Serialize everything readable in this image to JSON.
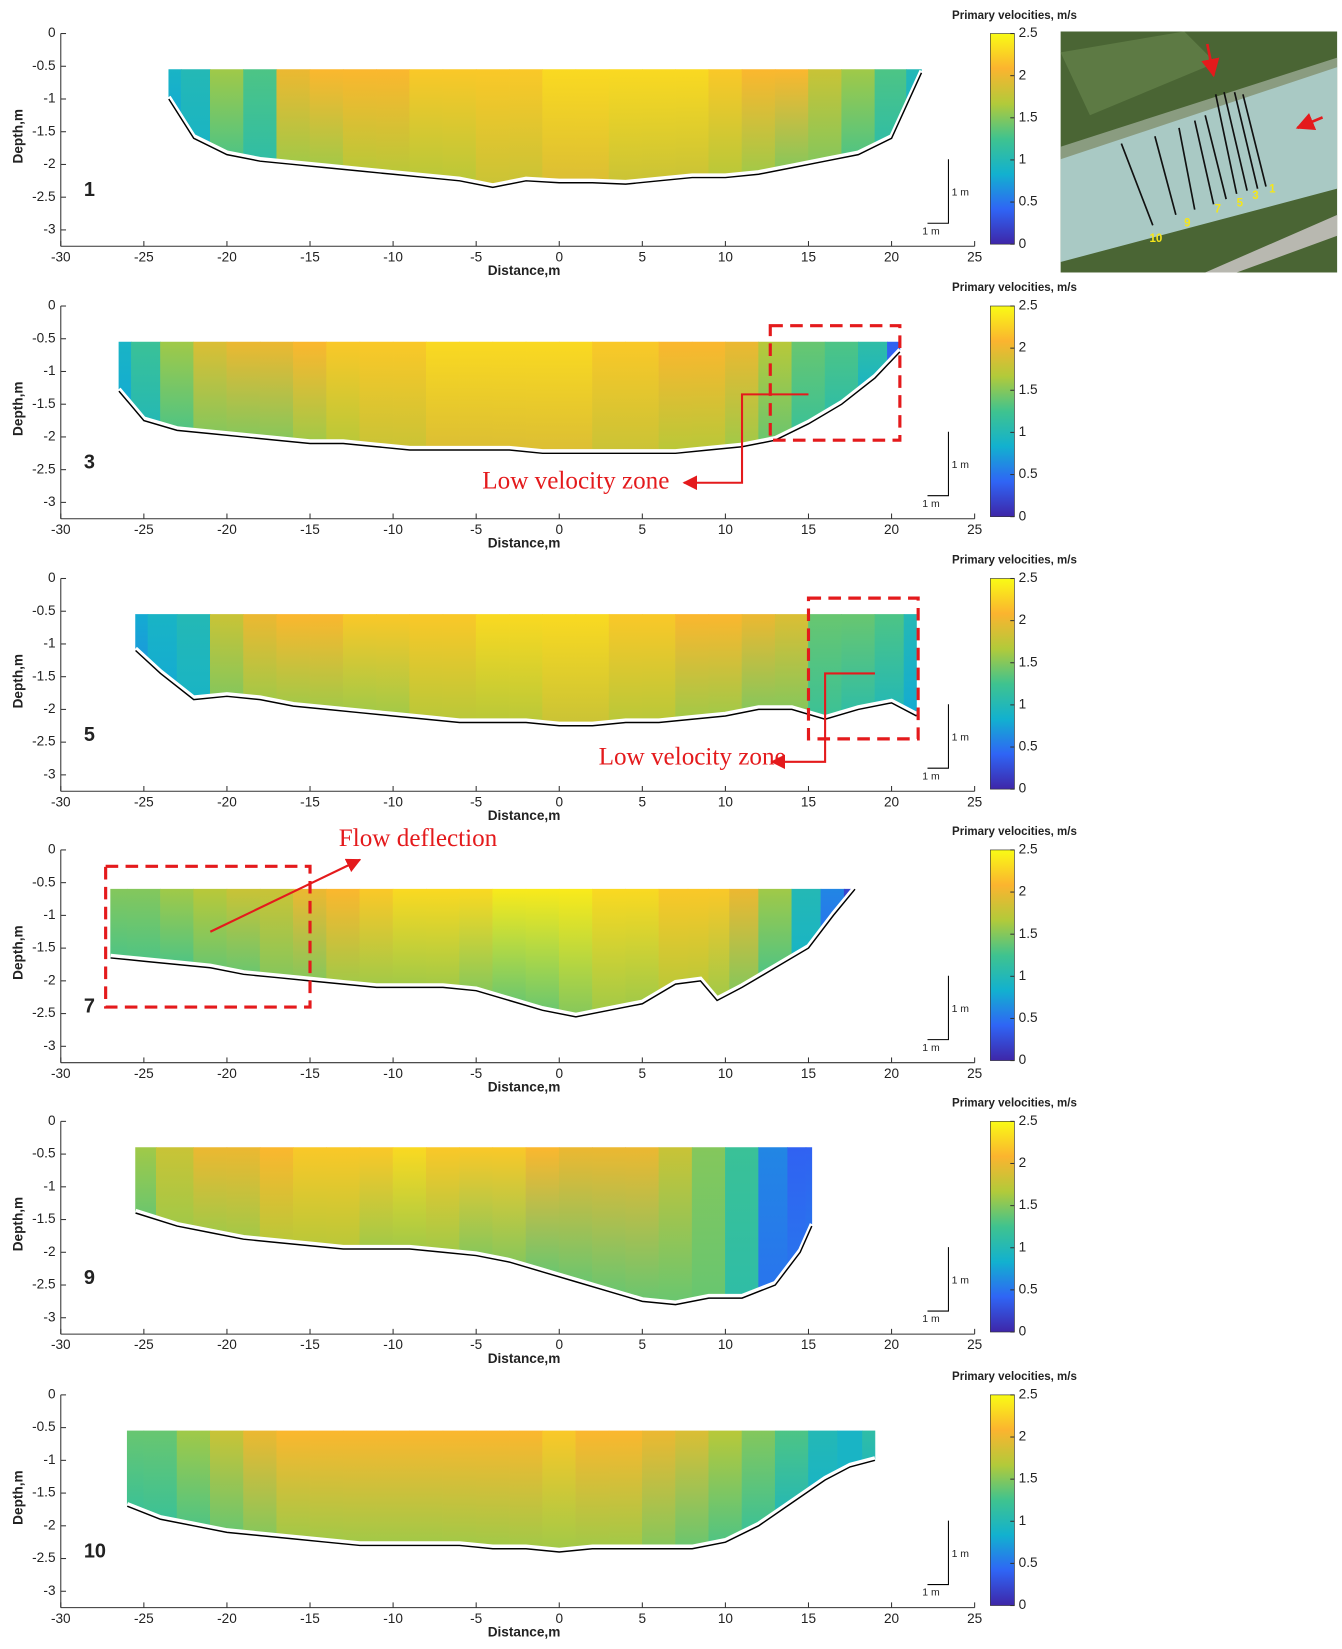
{
  "chart_data": [
    {
      "type": "section",
      "label": "1",
      "xlabel": "Distance,m",
      "ylabel": "Depth,m",
      "xlim": [
        -30,
        25
      ],
      "ylim": [
        -3.25,
        0
      ],
      "xticks": [
        -30,
        -25,
        -20,
        -15,
        -10,
        -5,
        0,
        5,
        10,
        15,
        20,
        25
      ],
      "yticks": [
        0,
        -0.5,
        -1,
        -1.5,
        -2,
        -2.5,
        -3
      ],
      "colorbar_title": "Primary velocities, m/s",
      "clim": [
        0,
        2.5
      ],
      "cticks": [
        0,
        0.5,
        1,
        1.5,
        2,
        2.5
      ],
      "colormap": [
        "#3e26a8",
        "#2f65f5",
        "#12b1cf",
        "#3fc38f",
        "#b2ca3a",
        "#fbb42f",
        "#f9fb15"
      ],
      "scale_labels": [
        "1 m",
        "1 m"
      ],
      "surface": -0.55,
      "x": [
        -23.5,
        -22,
        -20,
        -18,
        -16,
        -14,
        -12,
        -10,
        -8,
        -6,
        -4,
        -2,
        0,
        2,
        4,
        6,
        8,
        10,
        12,
        14,
        16,
        18,
        20,
        21.8
      ],
      "bed": [
        -1.0,
        -1.6,
        -1.85,
        -1.95,
        -2.0,
        -2.05,
        -2.1,
        -2.15,
        -2.2,
        -2.25,
        -2.35,
        -2.25,
        -2.28,
        -2.28,
        -2.3,
        -2.25,
        -2.2,
        -2.2,
        -2.15,
        -2.05,
        -1.95,
        -1.85,
        -1.6,
        -0.6
      ],
      "velocity_top": [
        0.9,
        1.0,
        1.6,
        1.3,
        2.0,
        2.1,
        2.1,
        2.1,
        2.2,
        2.2,
        2.2,
        2.2,
        2.3,
        2.3,
        2.3,
        2.3,
        2.3,
        2.2,
        2.1,
        2.1,
        1.8,
        1.6,
        1.3,
        1.0
      ],
      "velocity_bottom": [
        0.8,
        0.9,
        1.3,
        1.1,
        1.6,
        1.6,
        1.7,
        1.7,
        1.7,
        1.7,
        1.8,
        1.8,
        1.9,
        1.9,
        1.8,
        1.8,
        1.8,
        1.7,
        1.6,
        1.5,
        1.5,
        1.3,
        1.1,
        0.9
      ]
    },
    {
      "type": "section",
      "label": "3",
      "xlabel": "Distance,m",
      "ylabel": "Depth,m",
      "xlim": [
        -30,
        25
      ],
      "ylim": [
        -3.25,
        0
      ],
      "xticks": [
        -30,
        -25,
        -20,
        -15,
        -10,
        -5,
        0,
        5,
        10,
        15,
        20,
        25
      ],
      "yticks": [
        0,
        -0.5,
        -1,
        -1.5,
        -2,
        -2.5,
        -3
      ],
      "colorbar_title": "Primary velocities, m/s",
      "clim": [
        0,
        2.5
      ],
      "cticks": [
        0,
        0.5,
        1,
        1.5,
        2,
        2.5
      ],
      "colormap": [
        "#3e26a8",
        "#2f65f5",
        "#12b1cf",
        "#3fc38f",
        "#b2ca3a",
        "#fbb42f",
        "#f9fb15"
      ],
      "scale_labels": [
        "1 m",
        "1 m"
      ],
      "surface": -0.55,
      "annotation": "Low velocity zone",
      "x": [
        -26.5,
        -25,
        -23,
        -21,
        -19,
        -17,
        -15,
        -13,
        -11,
        -9,
        -7,
        -5,
        -3,
        -1,
        1,
        3,
        5,
        7,
        9,
        11,
        13,
        15,
        17,
        19,
        20.5
      ],
      "bed": [
        -1.3,
        -1.75,
        -1.9,
        -1.95,
        -2.0,
        -2.05,
        -2.1,
        -2.1,
        -2.15,
        -2.2,
        -2.2,
        -2.2,
        -2.2,
        -2.25,
        -2.25,
        -2.25,
        -2.25,
        -2.25,
        -2.2,
        -2.15,
        -2.05,
        -1.8,
        -1.5,
        -1.1,
        -0.7
      ],
      "velocity_top": [
        0.9,
        1.2,
        1.6,
        1.9,
        2.0,
        2.0,
        2.1,
        2.2,
        2.2,
        2.2,
        2.3,
        2.3,
        2.3,
        2.3,
        2.3,
        2.2,
        2.2,
        2.1,
        2.1,
        2.0,
        1.7,
        1.4,
        1.3,
        1.1,
        0.4
      ],
      "velocity_bottom": [
        0.8,
        1.0,
        1.3,
        1.5,
        1.5,
        1.5,
        1.6,
        1.7,
        1.8,
        1.8,
        1.9,
        1.9,
        1.9,
        1.9,
        1.9,
        1.8,
        1.8,
        1.7,
        1.7,
        1.6,
        1.4,
        1.2,
        1.1,
        0.9,
        0.4
      ]
    },
    {
      "type": "section",
      "label": "5",
      "xlabel": "Distance,m",
      "ylabel": "Depth,m",
      "xlim": [
        -30,
        25
      ],
      "ylim": [
        -3.25,
        0
      ],
      "xticks": [
        -30,
        -25,
        -20,
        -15,
        -10,
        -5,
        0,
        5,
        10,
        15,
        20,
        25
      ],
      "yticks": [
        0,
        -0.5,
        -1,
        -1.5,
        -2,
        -2.5,
        -3
      ],
      "colorbar_title": "Primary velocities, m/s",
      "clim": [
        0,
        2.5
      ],
      "cticks": [
        0,
        0.5,
        1,
        1.5,
        2,
        2.5
      ],
      "colormap": [
        "#3e26a8",
        "#2f65f5",
        "#12b1cf",
        "#3fc38f",
        "#b2ca3a",
        "#fbb42f",
        "#f9fb15"
      ],
      "scale_labels": [
        "1 m",
        "1 m"
      ],
      "surface": -0.55,
      "annotation": "Low velocity zone",
      "x": [
        -25.5,
        -24,
        -22,
        -20,
        -18,
        -16,
        -14,
        -12,
        -10,
        -8,
        -6,
        -4,
        -2,
        0,
        2,
        4,
        6,
        8,
        10,
        12,
        14,
        16,
        18,
        20,
        21.5
      ],
      "bed": [
        -1.1,
        -1.45,
        -1.85,
        -1.8,
        -1.85,
        -1.95,
        -2.0,
        -2.05,
        -2.1,
        -2.15,
        -2.2,
        -2.2,
        -2.2,
        -2.25,
        -2.25,
        -2.2,
        -2.2,
        -2.15,
        -2.1,
        -2.0,
        -2.0,
        -2.15,
        -2.0,
        -1.9,
        -2.1
      ],
      "velocity_top": [
        0.8,
        0.9,
        1.0,
        1.8,
        2.0,
        2.1,
        2.1,
        2.2,
        2.2,
        2.2,
        2.2,
        2.3,
        2.3,
        2.3,
        2.3,
        2.2,
        2.2,
        2.1,
        2.1,
        2.0,
        1.9,
        1.4,
        1.4,
        1.3,
        1.0
      ],
      "velocity_bottom": [
        0.7,
        0.8,
        0.9,
        1.5,
        1.6,
        1.6,
        1.6,
        1.6,
        1.6,
        1.7,
        1.7,
        1.7,
        1.7,
        1.8,
        1.8,
        1.7,
        1.7,
        1.6,
        1.6,
        1.5,
        1.5,
        1.2,
        1.1,
        1.0,
        0.8
      ]
    },
    {
      "type": "section",
      "label": "7",
      "xlabel": "Distance,m",
      "ylabel": "Depth,m",
      "xlim": [
        -30,
        25
      ],
      "ylim": [
        -3.25,
        0
      ],
      "xticks": [
        -30,
        -25,
        -20,
        -15,
        -10,
        -5,
        0,
        5,
        10,
        15,
        20,
        25
      ],
      "yticks": [
        0,
        -0.5,
        -1,
        -1.5,
        -2,
        -2.5,
        -3
      ],
      "colorbar_title": "Primary velocities, m/s",
      "clim": [
        0,
        2.5
      ],
      "cticks": [
        0,
        0.5,
        1,
        1.5,
        2,
        2.5
      ],
      "colormap": [
        "#3e26a8",
        "#2f65f5",
        "#12b1cf",
        "#3fc38f",
        "#b2ca3a",
        "#fbb42f",
        "#f9fb15"
      ],
      "scale_labels": [
        "1 m",
        "1 m"
      ],
      "surface": -0.6,
      "annotation": "Flow deflection",
      "x": [
        -27,
        -25,
        -23,
        -21,
        -19,
        -17,
        -15,
        -13,
        -11,
        -9,
        -7,
        -5,
        -3,
        -1,
        1,
        3,
        5,
        7,
        8.5,
        9.5,
        11,
        13,
        15,
        16.5,
        17.8
      ],
      "bed": [
        -1.65,
        -1.7,
        -1.75,
        -1.8,
        -1.9,
        -1.95,
        -2.0,
        -2.05,
        -2.1,
        -2.1,
        -2.1,
        -2.15,
        -2.3,
        -2.45,
        -2.55,
        -2.45,
        -2.35,
        -2.05,
        -2.0,
        -2.3,
        -2.1,
        -1.8,
        -1.5,
        -1.0,
        -0.6
      ],
      "velocity_top": [
        1.5,
        1.5,
        1.6,
        1.7,
        1.8,
        1.8,
        2.0,
        2.1,
        2.2,
        2.3,
        2.3,
        2.3,
        2.4,
        2.4,
        2.4,
        2.3,
        2.3,
        2.2,
        2.2,
        2.2,
        2.0,
        1.6,
        1.0,
        0.6,
        0.2
      ],
      "velocity_bottom": [
        1.3,
        1.3,
        1.3,
        1.4,
        1.4,
        1.5,
        1.5,
        1.6,
        1.6,
        1.6,
        1.6,
        1.5,
        1.4,
        1.4,
        1.5,
        1.6,
        1.6,
        1.7,
        1.7,
        1.6,
        1.5,
        1.3,
        0.9,
        0.5,
        0.2
      ]
    },
    {
      "type": "section",
      "label": "9",
      "xlabel": "Distance,m",
      "ylabel": "Depth,m",
      "xlim": [
        -30,
        25
      ],
      "ylim": [
        -3.25,
        0
      ],
      "xticks": [
        -30,
        -25,
        -20,
        -15,
        -10,
        -5,
        0,
        5,
        10,
        15,
        20,
        25
      ],
      "yticks": [
        0,
        -0.5,
        -1,
        -1.5,
        -2,
        -2.5,
        -3
      ],
      "colorbar_title": "Primary velocities, m/s",
      "clim": [
        0,
        2.5
      ],
      "cticks": [
        0,
        0.5,
        1,
        1.5,
        2,
        2.5
      ],
      "colormap": [
        "#3e26a8",
        "#2f65f5",
        "#12b1cf",
        "#3fc38f",
        "#b2ca3a",
        "#fbb42f",
        "#f9fb15"
      ],
      "scale_labels": [
        "1 m",
        "1 m"
      ],
      "surface": -0.4,
      "x": [
        -25.5,
        -23,
        -21,
        -19,
        -17,
        -15,
        -13,
        -11,
        -9,
        -7,
        -5,
        -3,
        -1,
        1,
        3,
        5,
        7,
        9,
        11,
        13,
        14.5,
        15.2
      ],
      "bed": [
        -1.4,
        -1.6,
        -1.7,
        -1.8,
        -1.85,
        -1.9,
        -1.95,
        -1.95,
        -1.95,
        -2.0,
        -2.05,
        -2.15,
        -2.3,
        -2.45,
        -2.6,
        -2.75,
        -2.8,
        -2.7,
        -2.7,
        -2.5,
        -2.0,
        -1.6
      ],
      "velocity_top": [
        1.6,
        1.8,
        2.0,
        2.0,
        2.1,
        2.2,
        2.2,
        2.2,
        2.3,
        2.2,
        2.2,
        2.2,
        2.1,
        2.0,
        2.0,
        2.0,
        1.8,
        1.5,
        1.2,
        0.6,
        0.4,
        0.4
      ],
      "velocity_bottom": [
        1.4,
        1.6,
        1.6,
        1.6,
        1.7,
        1.7,
        1.7,
        1.6,
        1.6,
        1.6,
        1.5,
        1.5,
        1.4,
        1.4,
        1.4,
        1.4,
        1.4,
        1.4,
        1.1,
        0.5,
        0.5,
        0.5
      ]
    },
    {
      "type": "section",
      "label": "10",
      "xlabel": "Distance,m",
      "ylabel": "Depth,m",
      "xlim": [
        -30,
        25
      ],
      "ylim": [
        -3.25,
        0
      ],
      "xticks": [
        -30,
        -25,
        -20,
        -15,
        -10,
        -5,
        0,
        5,
        10,
        15,
        20,
        25
      ],
      "yticks": [
        0,
        -0.5,
        -1,
        -1.5,
        -2,
        -2.5,
        -3
      ],
      "colorbar_title": "Primary velocities, m/s",
      "clim": [
        0,
        2.5
      ],
      "cticks": [
        0,
        0.5,
        1,
        1.5,
        2,
        2.5
      ],
      "colormap": [
        "#3e26a8",
        "#2f65f5",
        "#12b1cf",
        "#3fc38f",
        "#b2ca3a",
        "#fbb42f",
        "#f9fb15"
      ],
      "scale_labels": [
        "1 m",
        "1 m"
      ],
      "surface": -0.55,
      "x": [
        -26,
        -24,
        -22,
        -20,
        -18,
        -16,
        -14,
        -12,
        -10,
        -8,
        -6,
        -4,
        -2,
        0,
        2,
        4,
        6,
        8,
        10,
        12,
        14,
        16,
        17.5,
        19
      ],
      "bed": [
        -1.7,
        -1.9,
        -2.0,
        -2.1,
        -2.15,
        -2.2,
        -2.25,
        -2.3,
        -2.3,
        -2.3,
        -2.3,
        -2.35,
        -2.35,
        -2.4,
        -2.35,
        -2.35,
        -2.35,
        -2.35,
        -2.25,
        -2.0,
        -1.65,
        -1.3,
        -1.1,
        -1.0
      ],
      "velocity_top": [
        1.4,
        1.4,
        1.6,
        1.8,
        2.0,
        2.1,
        2.1,
        2.1,
        2.1,
        2.1,
        2.1,
        2.1,
        2.1,
        2.2,
        2.1,
        2.1,
        2.0,
        1.9,
        1.7,
        1.5,
        1.3,
        1.0,
        0.9,
        1.1
      ],
      "velocity_bottom": [
        1.2,
        1.2,
        1.3,
        1.4,
        1.5,
        1.6,
        1.6,
        1.6,
        1.6,
        1.6,
        1.6,
        1.6,
        1.6,
        1.6,
        1.6,
        1.6,
        1.5,
        1.4,
        1.3,
        1.2,
        1.0,
        0.9,
        0.9,
        1.0
      ]
    }
  ],
  "map": {
    "labels": [
      "10",
      "9",
      "7",
      "5",
      "3",
      "1"
    ]
  }
}
